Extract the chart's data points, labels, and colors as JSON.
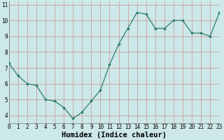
{
  "x": [
    0,
    1,
    2,
    3,
    4,
    5,
    6,
    7,
    8,
    9,
    10,
    11,
    12,
    13,
    14,
    15,
    16,
    17,
    18,
    19,
    20,
    21,
    22,
    23
  ],
  "y": [
    7.3,
    6.5,
    6.0,
    5.9,
    5.0,
    4.9,
    4.5,
    3.8,
    4.2,
    4.9,
    5.6,
    7.2,
    8.5,
    9.5,
    10.5,
    10.4,
    9.5,
    9.5,
    10.0,
    10.0,
    9.2,
    9.2,
    9.0,
    10.5
  ],
  "title": "",
  "xlabel": "Humidex (Indice chaleur)",
  "ylabel": "",
  "xlim": [
    0,
    23
  ],
  "ylim": [
    3.5,
    11.2
  ],
  "yticks": [
    4,
    5,
    6,
    7,
    8,
    9,
    10,
    11
  ],
  "xticks": [
    0,
    1,
    2,
    3,
    4,
    5,
    6,
    7,
    8,
    9,
    10,
    11,
    12,
    13,
    14,
    15,
    16,
    17,
    18,
    19,
    20,
    21,
    22,
    23
  ],
  "line_color": "#2d7d6e",
  "marker_color": "#2d7d6e",
  "bg_color": "#cce8e8",
  "grid_color_h": "#d09090",
  "grid_color_v": "#d09090",
  "xlabel_fontsize": 7.5,
  "tick_fontsize": 5.5
}
